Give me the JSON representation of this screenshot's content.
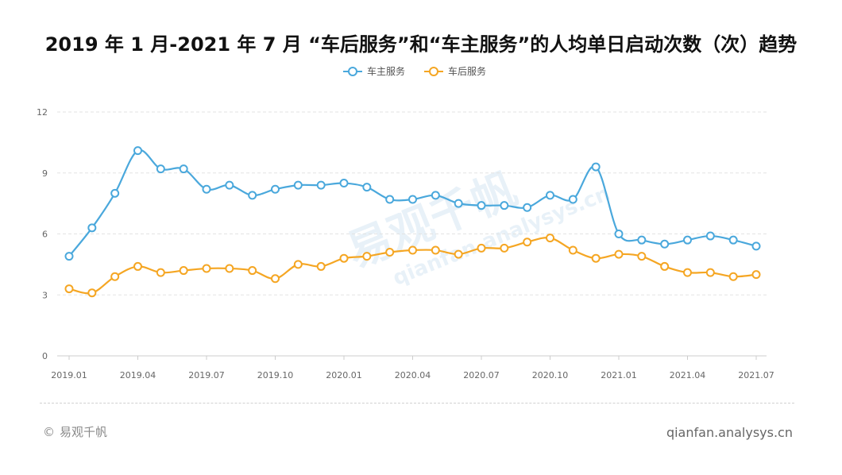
{
  "chart_data": {
    "type": "line",
    "title": "2019 年 1 月-2021 年 7 月 “车后服务”和“车主服务”的人均单日启动次数（次）趋势",
    "categories": [
      "2019.01",
      "2019.02",
      "2019.03",
      "2019.04",
      "2019.05",
      "2019.06",
      "2019.07",
      "2019.08",
      "2019.09",
      "2019.10",
      "2019.11",
      "2019.12",
      "2020.01",
      "2020.02",
      "2020.03",
      "2020.04",
      "2020.05",
      "2020.06",
      "2020.07",
      "2020.08",
      "2020.09",
      "2020.10",
      "2020.11",
      "2020.12",
      "2021.01",
      "2021.02",
      "2021.03",
      "2021.04",
      "2021.05",
      "2021.06",
      "2021.07"
    ],
    "x_tick_labels": [
      "2019.01",
      "2019.04",
      "2019.07",
      "2019.10",
      "2020.01",
      "2020.04",
      "2020.07",
      "2020.10",
      "2021.01",
      "2021.04",
      "2021.07"
    ],
    "y_ticks": [
      "0",
      "3",
      "6",
      "9",
      "12"
    ],
    "ylim": [
      0,
      12
    ],
    "grid": true,
    "legend_position": "top-center",
    "series": [
      {
        "name": "车主服务",
        "color": "#4aa8dc",
        "values": [
          4.9,
          6.3,
          8.0,
          10.1,
          9.2,
          9.2,
          8.2,
          8.4,
          7.9,
          8.2,
          8.4,
          8.4,
          8.5,
          8.3,
          7.7,
          7.7,
          7.9,
          7.5,
          7.4,
          7.4,
          7.3,
          7.9,
          7.7,
          9.3,
          6.0,
          5.7,
          5.5,
          5.7,
          5.9,
          5.7,
          5.4
        ]
      },
      {
        "name": "车后服务",
        "color": "#f5a623",
        "values": [
          3.3,
          3.1,
          3.9,
          4.4,
          4.1,
          4.2,
          4.3,
          4.3,
          4.2,
          3.8,
          4.5,
          4.4,
          4.8,
          4.9,
          5.1,
          5.2,
          5.2,
          5.0,
          5.3,
          5.3,
          5.6,
          5.8,
          5.2,
          4.8,
          5.0,
          4.9,
          4.4,
          4.1,
          4.1,
          3.9,
          4.0
        ]
      }
    ]
  },
  "footer": {
    "copyright_symbol": "©",
    "brand": "易观千帆",
    "url": "qianfan.analysys.cn"
  },
  "watermark": {
    "text": "易观千帆",
    "subtext": "qianfan.analysys.cn"
  }
}
